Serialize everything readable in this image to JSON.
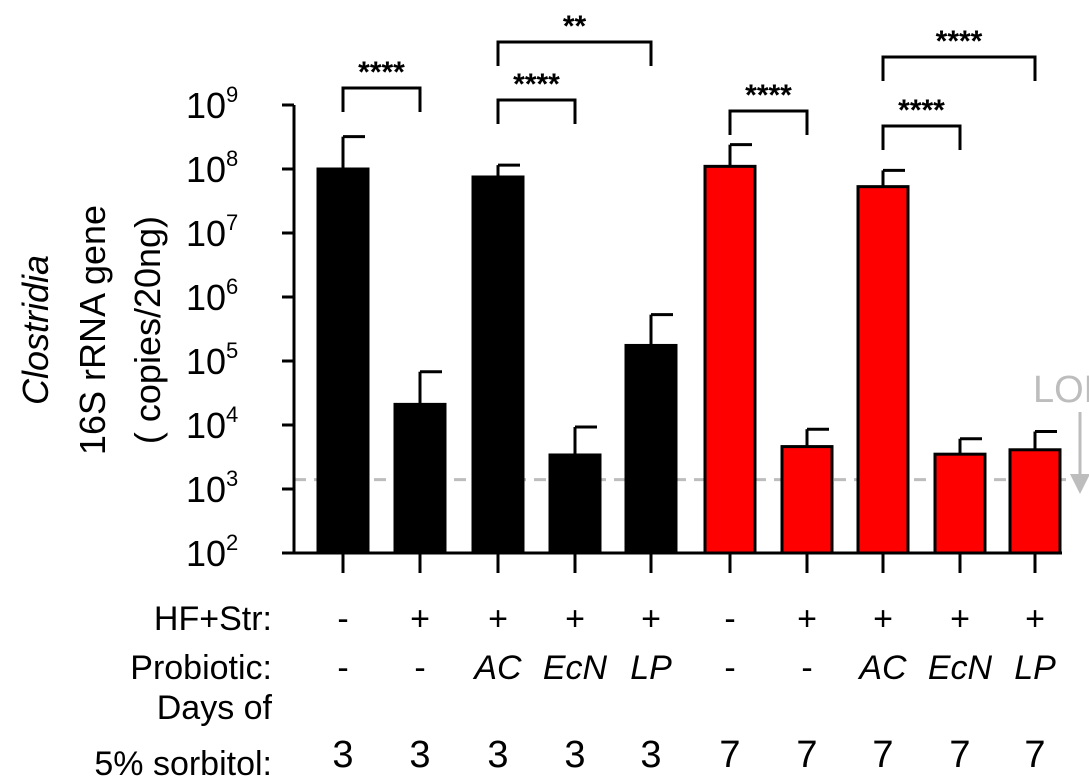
{
  "chart_data": {
    "type": "bar",
    "ylabel_italic": "Clostridia",
    "ylabel_line2": "16S rRNA gene",
    "ylabel_line3": "( copies/20ng)",
    "yscale": "log",
    "ylim": [
      100,
      1000000000
    ],
    "yticks": [
      {
        "base": "10",
        "exp": "2",
        "value": 100
      },
      {
        "base": "10",
        "exp": "3",
        "value": 1000
      },
      {
        "base": "10",
        "exp": "4",
        "value": 10000
      },
      {
        "base": "10",
        "exp": "5",
        "value": 100000
      },
      {
        "base": "10",
        "exp": "6",
        "value": 1000000
      },
      {
        "base": "10",
        "exp": "7",
        "value": 10000000
      },
      {
        "base": "10",
        "exp": "8",
        "value": 100000000
      },
      {
        "base": "10",
        "exp": "9",
        "value": 1000000000
      }
    ],
    "bars": [
      {
        "value": 100000000,
        "error_top": 320000000,
        "color": "#000000",
        "hf": "-",
        "probiotic": "-",
        "days": "3"
      },
      {
        "value": 21000,
        "error_top": 68000,
        "color": "#000000",
        "hf": "+",
        "probiotic": "-",
        "days": "3"
      },
      {
        "value": 75000000,
        "error_top": 115000000,
        "color": "#000000",
        "hf": "+",
        "probiotic": "AC",
        "days": "3"
      },
      {
        "value": 3400,
        "error_top": 9300,
        "color": "#000000",
        "hf": "+",
        "probiotic": "EcN",
        "days": "3"
      },
      {
        "value": 175000,
        "error_top": 530000,
        "color": "#000000",
        "hf": "+",
        "probiotic": "LP",
        "days": "3"
      },
      {
        "value": 110000000,
        "error_top": 240000000,
        "color": "#ff0000",
        "hf": "-",
        "probiotic": "-",
        "days": "7"
      },
      {
        "value": 4600,
        "error_top": 8600,
        "color": "#ff0000",
        "hf": "+",
        "probiotic": "-",
        "days": "7"
      },
      {
        "value": 53000000,
        "error_top": 95000000,
        "color": "#ff0000",
        "hf": "+",
        "probiotic": "AC",
        "days": "7"
      },
      {
        "value": 3500,
        "error_top": 6100,
        "color": "#ff0000",
        "hf": "+",
        "probiotic": "EcN",
        "days": "7"
      },
      {
        "value": 4100,
        "error_top": 7900,
        "color": "#ff0000",
        "hf": "+",
        "probiotic": "LP",
        "days": "7"
      }
    ],
    "italic_probiotics": [
      "AC",
      "EcN",
      "LP"
    ],
    "row_labels": {
      "hf": "HF+Str:",
      "probiotic": "Probiotic:",
      "days_line1": "Days of",
      "days_line2": "5% sorbitol:"
    },
    "lod": {
      "label": "LOD",
      "value": 1400,
      "color": "#bdbdbd"
    },
    "significance": [
      {
        "from": 0,
        "to": 1,
        "label": "****",
        "level": 330000000
      },
      {
        "from": 2,
        "to": 3,
        "label": "****",
        "level": 150000000
      },
      {
        "from": 2,
        "to": 4,
        "label": "**",
        "level": 3600000000
      },
      {
        "from": 5,
        "to": 6,
        "label": "****",
        "level": 310000000
      },
      {
        "from": 7,
        "to": 8,
        "label": "****",
        "level": 145000000
      },
      {
        "from": 7,
        "to": 9,
        "label": "****",
        "level": 1600000000
      }
    ]
  }
}
